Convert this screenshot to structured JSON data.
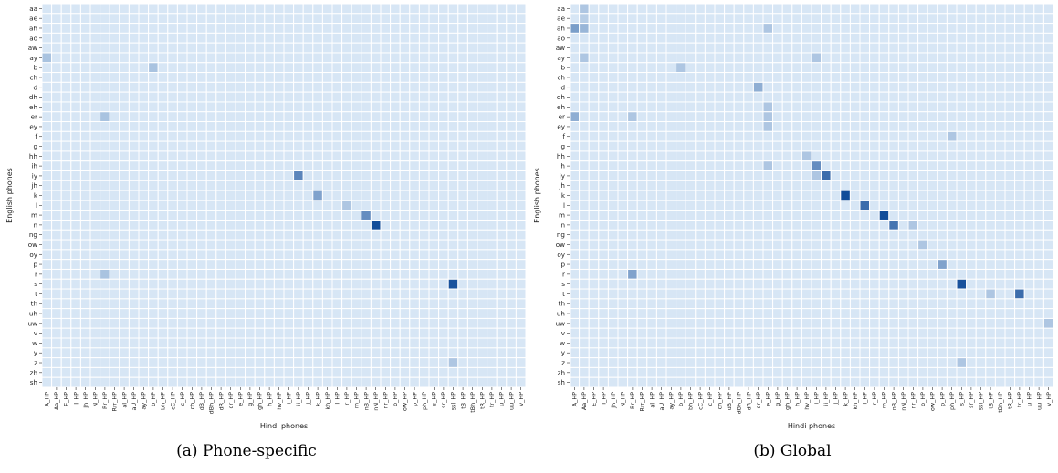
{
  "chart_data": [
    {
      "type": "heatmap",
      "caption": "(a) Phone-specific",
      "xlabel": "Hindi phones",
      "ylabel": "English phones",
      "rows": [
        "aa",
        "ae",
        "ah",
        "ao",
        "aw",
        "ay",
        "b",
        "ch",
        "d",
        "dh",
        "eh",
        "er",
        "ey",
        "f",
        "g",
        "hh",
        "ih",
        "iy",
        "jh",
        "k",
        "l",
        "m",
        "n",
        "ng",
        "ow",
        "oy",
        "p",
        "r",
        "s",
        "t",
        "th",
        "uh",
        "uw",
        "v",
        "w",
        "y",
        "z",
        "zh",
        "sh"
      ],
      "cols": [
        "A_HP",
        "Aa_HP",
        "E_HP",
        "I_HP",
        "Jh_HP",
        "N_HP",
        "Rr_HP",
        "Rrr_HP",
        "aI_HP",
        "aU_HP",
        "ay_HP",
        "b_HP",
        "bh_HP",
        "cC_HP",
        "c_HP",
        "ch_HP",
        "dB_HP",
        "dBh_HP",
        "dR_HP",
        "dr_HP",
        "e_HP",
        "g_HP",
        "gh_HP",
        "h_HP",
        "hv_HP",
        "i_HP",
        "ii_HP",
        "j_HP",
        "k_HP",
        "kh_HP",
        "l_HP",
        "lr_HP",
        "m_HP",
        "nB_HP",
        "nN_HP",
        "nr_HP",
        "o_HP",
        "ow_HP",
        "p_HP",
        "ph_HP",
        "s_HP",
        "sr_HP",
        "ssl_HP",
        "tB_HP",
        "tBh_HP",
        "tR_HP",
        "tr_HP",
        "u_HP",
        "uu_HP",
        "v_HP"
      ],
      "values": [
        {
          "row": "ay",
          "col": "A_HP",
          "value": 0.22
        },
        {
          "row": "b",
          "col": "b_HP",
          "value": 0.22
        },
        {
          "row": "er",
          "col": "Rr_HP",
          "value": 0.22
        },
        {
          "row": "iy",
          "col": "ii_HP",
          "value": 0.6
        },
        {
          "row": "k",
          "col": "k_HP",
          "value": 0.42
        },
        {
          "row": "l",
          "col": "lr_HP",
          "value": 0.2
        },
        {
          "row": "m",
          "col": "nB_HP",
          "value": 0.55
        },
        {
          "row": "n",
          "col": "nN_HP",
          "value": 0.95
        },
        {
          "row": "r",
          "col": "Rr_HP",
          "value": 0.22
        },
        {
          "row": "s",
          "col": "ssl_HP",
          "value": 0.92
        },
        {
          "row": "z",
          "col": "ssl_HP",
          "value": 0.2
        }
      ]
    },
    {
      "type": "heatmap",
      "caption": "(b) Global",
      "xlabel": "Hindi phones",
      "ylabel": "English phones",
      "rows": [
        "aa",
        "ae",
        "ah",
        "ao",
        "aw",
        "ay",
        "b",
        "ch",
        "d",
        "dh",
        "eh",
        "er",
        "ey",
        "f",
        "g",
        "hh",
        "ih",
        "iy",
        "jh",
        "k",
        "l",
        "m",
        "n",
        "ng",
        "ow",
        "oy",
        "p",
        "r",
        "s",
        "t",
        "th",
        "uh",
        "uw",
        "v",
        "w",
        "y",
        "z",
        "zh",
        "sh"
      ],
      "cols": [
        "A_HP",
        "Aa_HP",
        "E_HP",
        "I_HP",
        "Jh_HP",
        "N_HP",
        "Rr_HP",
        "Rrr_HP",
        "aI_HP",
        "aU_HP",
        "ay_HP",
        "b_HP",
        "bh_HP",
        "cC_HP",
        "c_HP",
        "ch_HP",
        "dB_HP",
        "dBh_HP",
        "dR_HP",
        "dr_HP",
        "e_HP",
        "g_HP",
        "gh_HP",
        "h_HP",
        "hv_HP",
        "i_HP",
        "ii_HP",
        "j_HP",
        "k_HP",
        "kh_HP",
        "l_HP",
        "lr_HP",
        "m_HP",
        "nB_HP",
        "nN_HP",
        "nr_HP",
        "o_HP",
        "ow_HP",
        "p_HP",
        "ph_HP",
        "s_HP",
        "sr_HP",
        "ssl_HP",
        "tB_HP",
        "tBh_HP",
        "tR_HP",
        "tr_HP",
        "u_HP",
        "uu_HP",
        "v_HP"
      ],
      "values": [
        {
          "row": "aa",
          "col": "Aa_HP",
          "value": 0.2
        },
        {
          "row": "ae",
          "col": "Aa_HP",
          "value": 0.15
        },
        {
          "row": "ah",
          "col": "A_HP",
          "value": 0.45
        },
        {
          "row": "ah",
          "col": "Aa_HP",
          "value": 0.3
        },
        {
          "row": "ah",
          "col": "e_HP",
          "value": 0.2
        },
        {
          "row": "ay",
          "col": "Aa_HP",
          "value": 0.2
        },
        {
          "row": "ay",
          "col": "i_HP",
          "value": 0.2
        },
        {
          "row": "b",
          "col": "b_HP",
          "value": 0.2
        },
        {
          "row": "d",
          "col": "dr_HP",
          "value": 0.35
        },
        {
          "row": "eh",
          "col": "e_HP",
          "value": 0.2
        },
        {
          "row": "er",
          "col": "A_HP",
          "value": 0.35
        },
        {
          "row": "er",
          "col": "Rr_HP",
          "value": 0.2
        },
        {
          "row": "er",
          "col": "e_HP",
          "value": 0.2
        },
        {
          "row": "ey",
          "col": "e_HP",
          "value": 0.2
        },
        {
          "row": "f",
          "col": "ph_HP",
          "value": 0.2
        },
        {
          "row": "hh",
          "col": "hv_HP",
          "value": 0.2
        },
        {
          "row": "ih",
          "col": "e_HP",
          "value": 0.2
        },
        {
          "row": "ih",
          "col": "i_HP",
          "value": 0.55
        },
        {
          "row": "iy",
          "col": "i_HP",
          "value": 0.2
        },
        {
          "row": "iy",
          "col": "ii_HP",
          "value": 0.75
        },
        {
          "row": "k",
          "col": "k_HP",
          "value": 0.95
        },
        {
          "row": "l",
          "col": "l_HP",
          "value": 0.75
        },
        {
          "row": "m",
          "col": "m_HP",
          "value": 0.95
        },
        {
          "row": "n",
          "col": "nB_HP",
          "value": 0.7
        },
        {
          "row": "n",
          "col": "nr_HP",
          "value": 0.2
        },
        {
          "row": "ow",
          "col": "o_HP",
          "value": 0.2
        },
        {
          "row": "p",
          "col": "p_HP",
          "value": 0.42
        },
        {
          "row": "r",
          "col": "Rr_HP",
          "value": 0.42
        },
        {
          "row": "s",
          "col": "s_HP",
          "value": 0.92
        },
        {
          "row": "t",
          "col": "tB_HP",
          "value": 0.2
        },
        {
          "row": "t",
          "col": "tr_HP",
          "value": 0.75
        },
        {
          "row": "uw",
          "col": "v_HP",
          "value": 0.2
        },
        {
          "row": "z",
          "col": "s_HP",
          "value": 0.2
        }
      ]
    }
  ]
}
